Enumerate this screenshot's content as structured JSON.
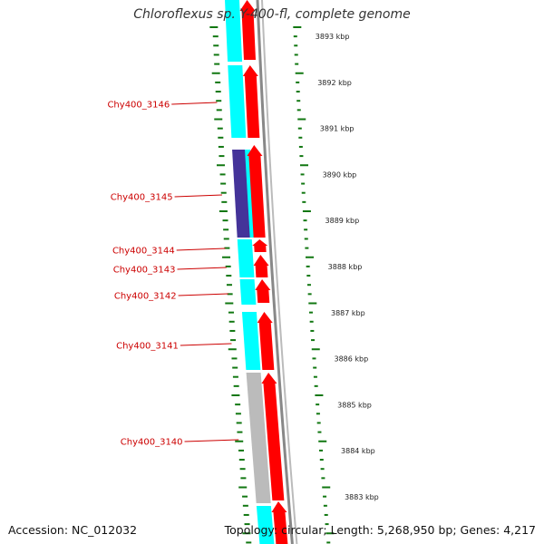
{
  "title": "Chloroflexus sp. Y-400-fl, complete genome",
  "footer": {
    "accession": "Accession: NC_012032",
    "stats": "Topology: circular; Length: 5,268,950 bp; Genes: 4,217"
  },
  "colors": {
    "forward_cds": "#ff0000",
    "reverse_cds": "#00ffff",
    "reverse_other": "#443399",
    "forward_other": "#bbbbbb",
    "backbone": "#888888",
    "tick": "#117711",
    "label_line": "#cc0000"
  },
  "tick_labels": [
    "3893 kbp",
    "3892 kbp",
    "3891 kbp",
    "3890 kbp",
    "3889 kbp",
    "3888 kbp",
    "3887 kbp",
    "3886 kbp",
    "3885 kbp",
    "3884 kbp",
    "3883 kbp"
  ],
  "gene_labels": [
    "Chy400_3146",
    "Chy400_3145",
    "Chy400_3144",
    "Chy400_3143",
    "Chy400_3142",
    "Chy400_3141",
    "Chy400_3140"
  ]
}
